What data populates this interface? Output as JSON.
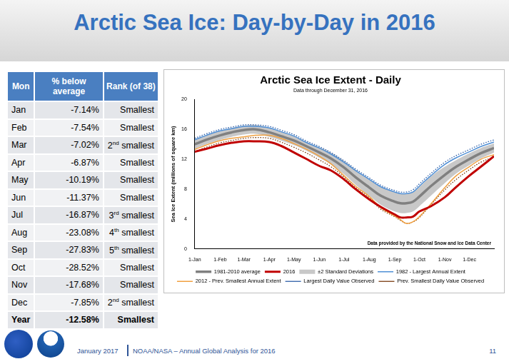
{
  "header": {
    "title": "Arctic Sea Ice: Day-by-Day in 2016"
  },
  "table": {
    "columns": [
      "Mon",
      "% below average",
      "Rank (of 38)"
    ],
    "rows": [
      [
        "Jan",
        "-7.14%",
        "Smallest"
      ],
      [
        "Feb",
        "-7.54%",
        "Smallest"
      ],
      [
        "Mar",
        "-7.02%",
        "2nd smallest"
      ],
      [
        "Apr",
        "-6.87%",
        "Smallest"
      ],
      [
        "May",
        "-10.19%",
        "Smallest"
      ],
      [
        "Jun",
        "-11.37%",
        "Smallest"
      ],
      [
        "Jul",
        "-16.87%",
        "3rd smallest"
      ],
      [
        "Aug",
        "-23.08%",
        "4th smallest"
      ],
      [
        "Sep",
        "-27.83%",
        "5th smallest"
      ],
      [
        "Oct",
        "-28.52%",
        "Smallest"
      ],
      [
        "Nov",
        "-17.68%",
        "Smallest"
      ],
      [
        "Dec",
        "-7.85%",
        "2nd smallest"
      ],
      [
        "Year",
        "-12.58%",
        "Smallest"
      ]
    ]
  },
  "chart_data": {
    "type": "line",
    "title": "Arctic Sea Ice Extent - Daily",
    "subtitle": "Data through December 31, 2016",
    "y_label": "Sea Ice Extent (millions of square km)",
    "annotation": "Data provided by the National Snow and Ice Data Center",
    "x": [
      1,
      15,
      32,
      46,
      61,
      75,
      92,
      106,
      122,
      136,
      153,
      167,
      183,
      197,
      214,
      228,
      245,
      252,
      259,
      267,
      275,
      289,
      306,
      320,
      336,
      350,
      366
    ],
    "xlim": [
      1,
      366
    ],
    "xticks": [
      {
        "value": 1,
        "label": "1-Jan"
      },
      {
        "value": 32,
        "label": "1-Feb"
      },
      {
        "value": 61,
        "label": "1-Mar"
      },
      {
        "value": 92,
        "label": "1-Apr"
      },
      {
        "value": 122,
        "label": "1-May"
      },
      {
        "value": 153,
        "label": "1-Jun"
      },
      {
        "value": 183,
        "label": "1-Jul"
      },
      {
        "value": 214,
        "label": "1-Aug"
      },
      {
        "value": 245,
        "label": "1-Sep"
      },
      {
        "value": 275,
        "label": "1-Oct"
      },
      {
        "value": 306,
        "label": "1-Nov"
      },
      {
        "value": 336,
        "label": "1-Dec"
      }
    ],
    "ylim": [
      0,
      20
    ],
    "yticks": [
      0,
      4,
      8,
      12,
      16,
      20
    ],
    "grid": false,
    "legend": "bottom",
    "series": [
      {
        "name": "1981-2010 average",
        "color": "#808080",
        "line_style": "solid",
        "values": [
          14.0,
          14.6,
          15.2,
          15.6,
          15.9,
          16.0,
          15.6,
          15.1,
          14.5,
          13.8,
          12.9,
          12.1,
          10.9,
          9.6,
          8.2,
          7.1,
          6.3,
          6.1,
          6.1,
          6.3,
          7.0,
          8.4,
          9.9,
          11.0,
          12.0,
          12.8,
          13.5
        ]
      },
      {
        "name": "2016",
        "color": "#c00000",
        "line_style": "solid",
        "values": [
          13.0,
          13.4,
          13.9,
          14.2,
          14.4,
          14.4,
          14.3,
          13.8,
          12.9,
          12.1,
          11.1,
          10.5,
          9.3,
          8.0,
          6.6,
          5.6,
          4.6,
          4.2,
          4.2,
          4.3,
          5.0,
          5.7,
          6.9,
          8.3,
          9.8,
          11.0,
          12.4
        ]
      },
      {
        "name": "±2 Standard Deviations",
        "type": "band",
        "color": "#c8c8c8",
        "lower": [
          13.4,
          14.0,
          14.6,
          15.0,
          15.3,
          15.4,
          15.0,
          14.5,
          13.9,
          13.2,
          12.2,
          11.3,
          10.0,
          8.6,
          7.1,
          5.9,
          5.0,
          4.8,
          4.8,
          5.0,
          5.7,
          7.1,
          8.8,
          10.1,
          11.2,
          12.1,
          12.9
        ],
        "upper": [
          14.6,
          15.2,
          15.8,
          16.2,
          16.5,
          16.6,
          16.2,
          15.7,
          15.1,
          14.4,
          13.6,
          12.9,
          11.8,
          10.6,
          9.3,
          8.3,
          7.6,
          7.4,
          7.4,
          7.6,
          8.3,
          9.7,
          11.0,
          11.9,
          12.8,
          13.5,
          14.1
        ]
      },
      {
        "name": "1982 - Largest Annual Extent",
        "color": "#4f8fd6",
        "line_style": "solid",
        "values": [
          14.6,
          15.2,
          15.8,
          16.1,
          16.4,
          16.4,
          16.2,
          15.7,
          15.1,
          14.3,
          13.5,
          12.7,
          11.6,
          10.5,
          9.3,
          8.3,
          7.6,
          7.4,
          7.4,
          7.6,
          8.4,
          9.8,
          11.3,
          12.2,
          13.0,
          13.7,
          14.3
        ]
      },
      {
        "name": "2012 - Prev. Smallest Annual Extent",
        "color": "#f0a040",
        "line_style": "solid",
        "values": [
          13.3,
          13.9,
          14.5,
          14.8,
          15.0,
          15.2,
          15.2,
          14.8,
          14.1,
          13.4,
          12.4,
          11.4,
          9.8,
          8.4,
          7.0,
          5.5,
          4.4,
          3.9,
          3.4,
          3.6,
          4.3,
          6.0,
          8.2,
          9.8,
          11.0,
          12.0,
          12.6
        ]
      },
      {
        "name": "Largest Daily Value Observed",
        "color": "#2e5fa8",
        "line_style": "dotted",
        "values": [
          14.8,
          15.4,
          16.0,
          16.3,
          16.6,
          16.6,
          16.4,
          15.9,
          15.3,
          14.5,
          13.7,
          12.9,
          11.8,
          10.7,
          9.5,
          8.5,
          7.8,
          7.6,
          7.6,
          7.9,
          8.7,
          10.1,
          11.6,
          12.5,
          13.3,
          14.0,
          14.6
        ]
      },
      {
        "name": "Prev. Smallest Daily Value Observed",
        "color": "#7a3b10",
        "line_style": "dotted",
        "values": [
          13.0,
          13.6,
          14.2,
          14.5,
          14.8,
          14.9,
          14.8,
          14.3,
          13.6,
          12.9,
          11.9,
          11.0,
          9.6,
          8.2,
          6.8,
          5.3,
          4.3,
          3.8,
          3.4,
          3.6,
          4.2,
          5.9,
          7.9,
          9.3,
          10.6,
          11.6,
          12.3
        ]
      }
    ]
  },
  "footer": {
    "date": "January 2017",
    "text": "NOAA/NASA – Annual Global Analysis for 2016",
    "page": "11"
  }
}
